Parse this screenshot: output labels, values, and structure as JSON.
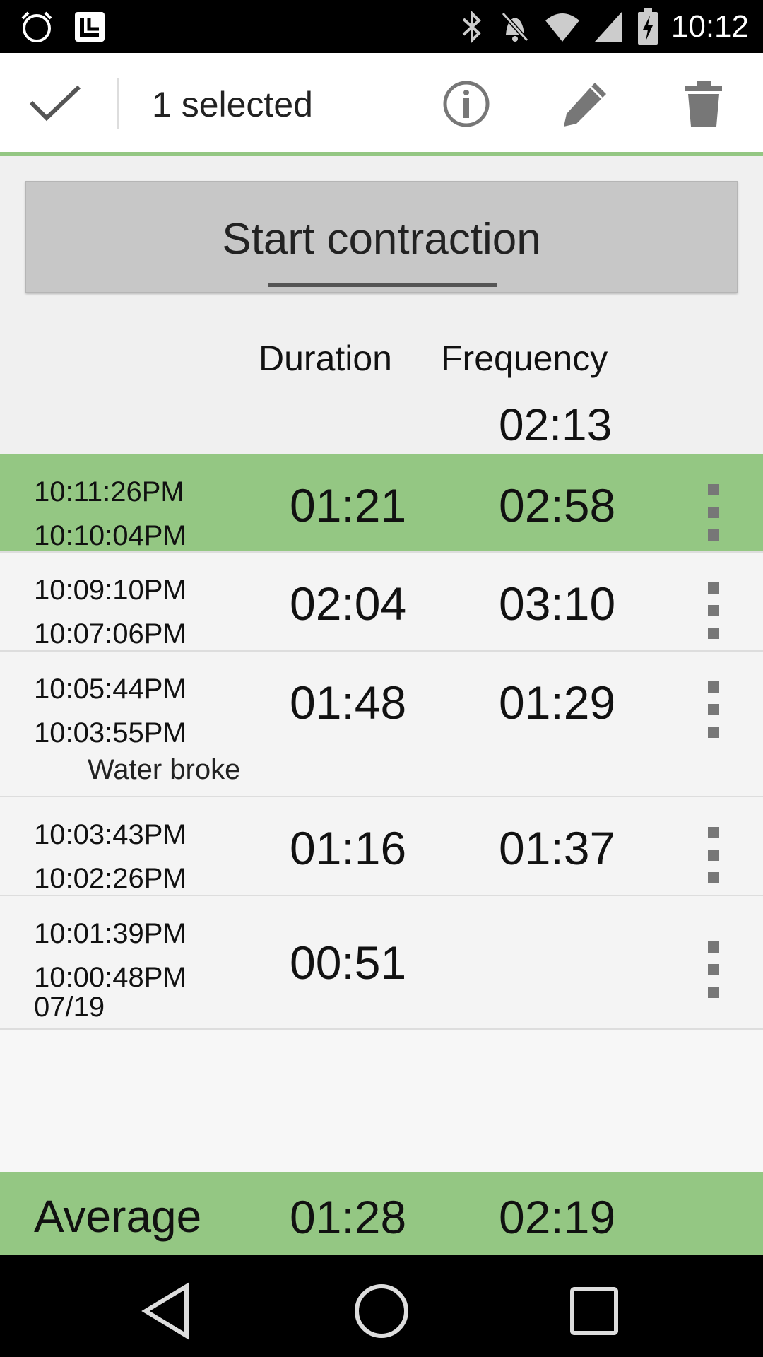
{
  "status_bar": {
    "time": "10:12",
    "icons": [
      "alarm-clock-icon",
      "app-notification-icon",
      "bluetooth-icon",
      "mute-icon",
      "wifi-icon",
      "signal-icon",
      "battery-icon"
    ]
  },
  "action_bar": {
    "selection_text": "1 selected",
    "accent_color": "#94c783",
    "icons": [
      "check-icon",
      "info-icon",
      "edit-icon",
      "delete-icon"
    ]
  },
  "start_button": {
    "label": "Start contraction"
  },
  "columns": {
    "duration": "Duration",
    "frequency": "Frequency"
  },
  "top_frequency": "02:13",
  "contractions": [
    {
      "end": "10:11:26PM",
      "start": "10:10:04PM",
      "duration": "01:21",
      "frequency": "02:58",
      "note": "",
      "date": "",
      "selected": true
    },
    {
      "end": "10:09:10PM",
      "start": "10:07:06PM",
      "duration": "02:04",
      "frequency": "03:10",
      "note": "",
      "date": "",
      "selected": false
    },
    {
      "end": "10:05:44PM",
      "start": "10:03:55PM",
      "duration": "01:48",
      "frequency": "01:29",
      "note": "Water broke",
      "date": "",
      "selected": false
    },
    {
      "end": "10:03:43PM",
      "start": "10:02:26PM",
      "duration": "01:16",
      "frequency": "01:37",
      "note": "",
      "date": "",
      "selected": false
    },
    {
      "end": "10:01:39PM",
      "start": "10:00:48PM",
      "duration": "00:51",
      "frequency": "",
      "note": "",
      "date": "07/19",
      "selected": false
    }
  ],
  "average": {
    "label": "Average",
    "duration": "01:28",
    "frequency": "02:19"
  },
  "nav_bar": {
    "icons": [
      "back-icon",
      "home-icon",
      "recents-icon"
    ]
  }
}
